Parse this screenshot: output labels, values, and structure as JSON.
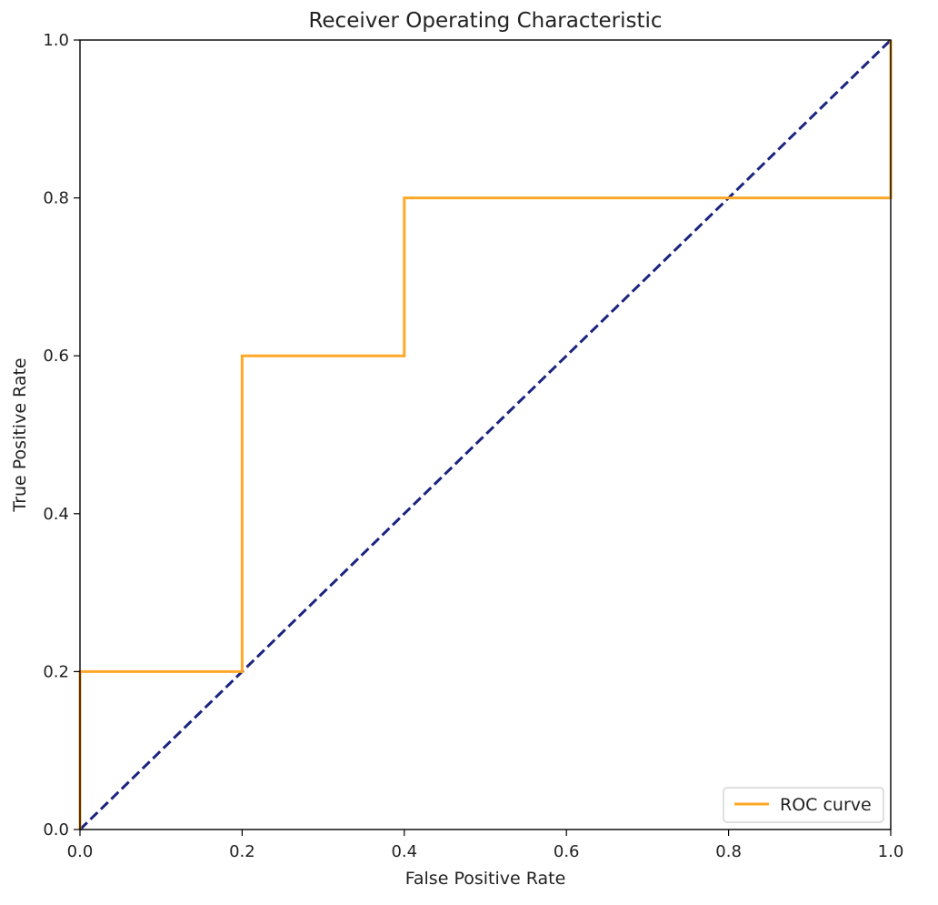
{
  "chart_data": {
    "type": "line",
    "title": "Receiver Operating Characteristic",
    "xlabel": "False Positive Rate",
    "ylabel": "True Positive Rate",
    "xlim": [
      0.0,
      1.0
    ],
    "ylim": [
      0.0,
      1.0
    ],
    "xticks": [
      "0.0",
      "0.2",
      "0.4",
      "0.6",
      "0.8",
      "1.0"
    ],
    "yticks": [
      "0.0",
      "0.2",
      "0.4",
      "0.6",
      "0.8",
      "1.0"
    ],
    "grid": false,
    "legend_position": "lower-right",
    "series": [
      {
        "name": "ROC curve",
        "color": "#ffa726",
        "style": "solid",
        "step": true,
        "x": [
          0.0,
          0.0,
          0.2,
          0.2,
          0.4,
          0.4,
          1.0,
          1.0
        ],
        "y": [
          0.0,
          0.2,
          0.2,
          0.6,
          0.6,
          0.8,
          0.8,
          1.0
        ]
      },
      {
        "color": "#1a237e",
        "style": "dashed",
        "x": [
          0.0,
          1.0
        ],
        "y": [
          0.0,
          1.0
        ]
      }
    ]
  }
}
